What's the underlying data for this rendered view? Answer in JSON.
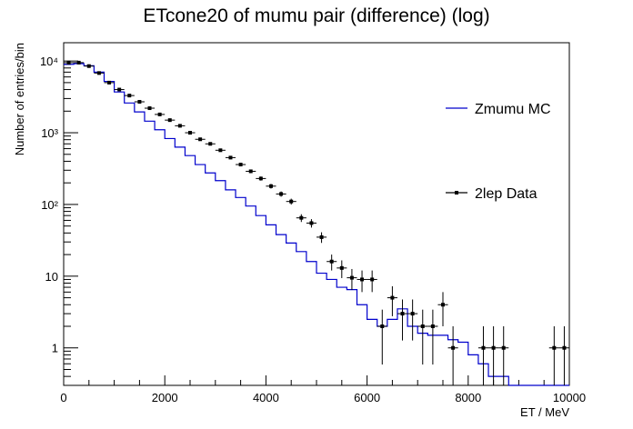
{
  "chart_data": {
    "type": "line",
    "title": "ETcone20 of mumu pair (difference) (log)",
    "xlabel": "ET / MeV",
    "ylabel": "Number of entries/bin",
    "xlim": [
      0,
      10000
    ],
    "ylim": [
      0.3,
      18000
    ],
    "y_scale": "log",
    "x_ticks": [
      0,
      2000,
      4000,
      6000,
      8000,
      10000
    ],
    "x_tick_labels": [
      "0",
      "2000",
      "4000",
      "6000",
      "8000",
      "10000"
    ],
    "y_ticks": [
      1,
      10,
      100,
      1000,
      10000
    ],
    "y_tick_labels": [
      "1",
      "10",
      "10²",
      "10³",
      "10⁴"
    ],
    "legend_position": "right",
    "bin_width": 200,
    "series": [
      {
        "name": "Zmumu MC",
        "style": "histogram",
        "color": "#0000cc",
        "values": [
          9000,
          9200,
          8600,
          7000,
          5200,
          3700,
          2600,
          1950,
          1450,
          1100,
          830,
          630,
          480,
          360,
          275,
          215,
          160,
          125,
          95,
          70,
          52,
          38,
          29,
          22,
          16,
          11,
          9,
          7,
          6.5,
          4,
          2.5,
          2,
          2.5,
          3.5,
          2,
          1.6,
          1.5,
          1.5,
          1.3,
          1.2,
          0.8,
          0.6,
          0.4,
          0.4,
          0.3,
          0.3,
          0.3,
          0.3,
          0.3,
          0.3
        ]
      },
      {
        "name": "2lep Data",
        "style": "points",
        "color": "#000000",
        "x": [
          100,
          300,
          500,
          700,
          900,
          1100,
          1300,
          1500,
          1700,
          1900,
          2100,
          2300,
          2500,
          2700,
          2900,
          3100,
          3300,
          3500,
          3700,
          3900,
          4100,
          4300,
          4500,
          4700,
          4900,
          5100,
          5300,
          5500,
          5700,
          5900,
          6100,
          6300,
          6500,
          6700,
          6900,
          7100,
          7300,
          7500,
          7700,
          8300,
          8500,
          8700,
          9700,
          9900
        ],
        "y": [
          9500,
          9500,
          8500,
          6800,
          5000,
          4000,
          3300,
          2700,
          2200,
          1800,
          1500,
          1250,
          1000,
          810,
          700,
          570,
          450,
          360,
          290,
          230,
          180,
          140,
          110,
          65,
          55,
          35,
          16,
          13,
          9.5,
          9,
          9,
          2,
          5,
          3,
          3,
          2,
          2,
          4,
          1,
          1,
          1,
          1,
          1,
          1
        ]
      }
    ]
  }
}
